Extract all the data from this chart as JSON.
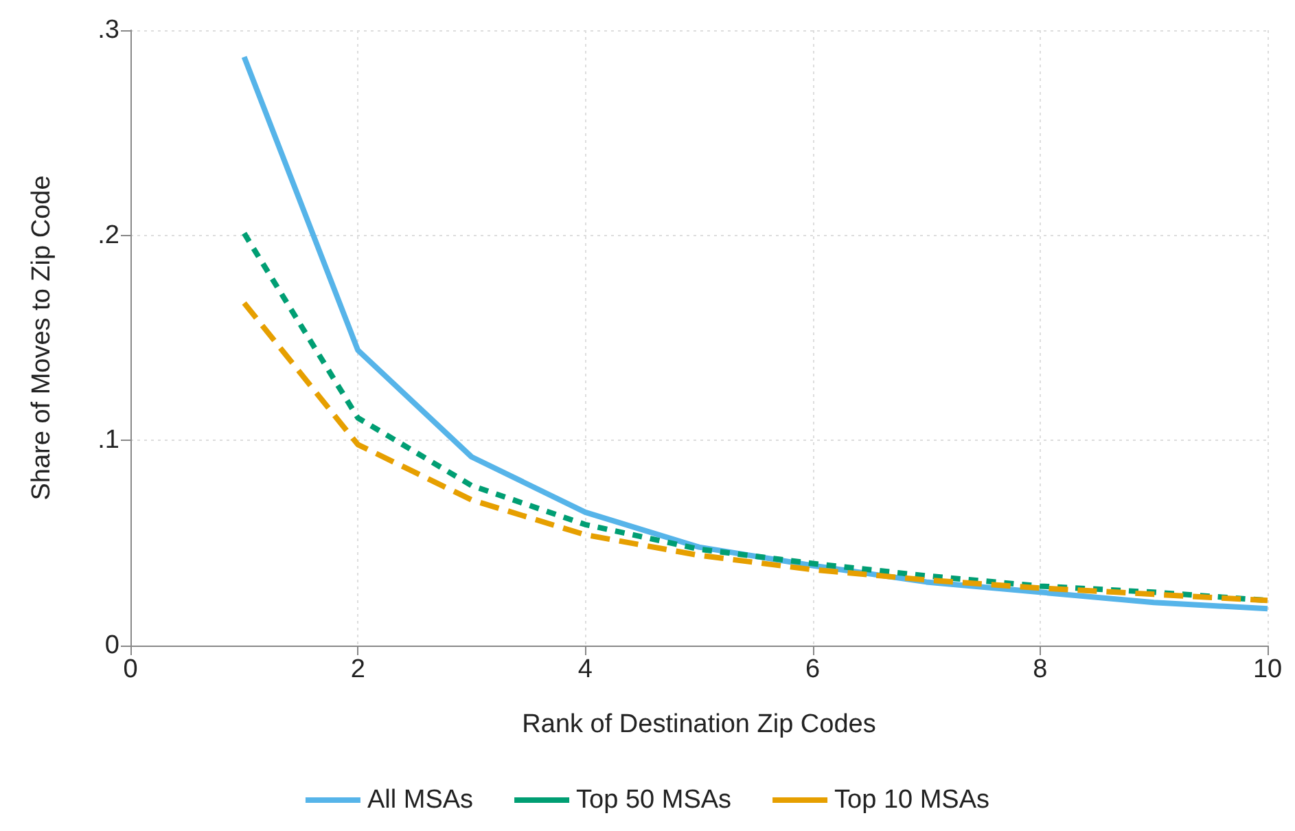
{
  "chart_data": {
    "type": "line",
    "xlabel": "Rank of Destination Zip Codes",
    "ylabel": "Share of Moves to Zip Code",
    "x": [
      1,
      2,
      3,
      4,
      5,
      6,
      7,
      8,
      9,
      10
    ],
    "series": [
      {
        "name": "All MSAs",
        "color": "#56b4e9",
        "line_style": "solid",
        "values": [
          0.287,
          0.144,
          0.092,
          0.065,
          0.048,
          0.039,
          0.031,
          0.026,
          0.021,
          0.018
        ]
      },
      {
        "name": "Top 50 MSAs",
        "color": "#009e73",
        "line_style": "dotted",
        "values": [
          0.201,
          0.111,
          0.078,
          0.059,
          0.047,
          0.04,
          0.034,
          0.029,
          0.026,
          0.022
        ]
      },
      {
        "name": "Top 10 MSAs",
        "color": "#e69f00",
        "line_style": "dashed",
        "values": [
          0.167,
          0.098,
          0.071,
          0.054,
          0.044,
          0.037,
          0.032,
          0.028,
          0.025,
          0.022
        ]
      }
    ],
    "xlim": [
      0,
      10
    ],
    "xticks": [
      0,
      2,
      4,
      6,
      8,
      10
    ],
    "ylim": [
      0,
      0.3
    ],
    "yticks": [
      {
        "value": 0,
        "label": "0"
      },
      {
        "value": 0.1,
        "label": ".1"
      },
      {
        "value": 0.2,
        "label": ".2"
      },
      {
        "value": 0.3,
        "label": ".3"
      }
    ],
    "grid": true,
    "legend": "bottom",
    "marker": "none"
  }
}
